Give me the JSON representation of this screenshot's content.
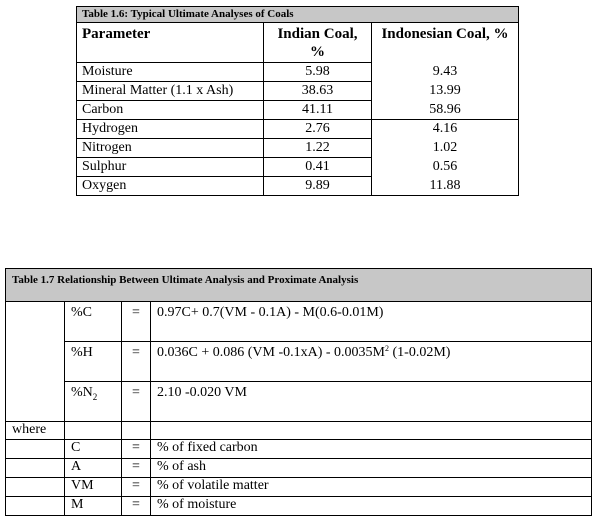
{
  "table16": {
    "caption": "Table 1.6: Typical Ultimate Analyses of  Coals",
    "headers": [
      "Parameter",
      "Indian Coal, %",
      "Indonesian Coal, %"
    ],
    "rows": [
      {
        "parameter": "Moisture",
        "indian": "5.98",
        "indonesian": "9.43"
      },
      {
        "parameter": "Mineral Matter (1.1 x Ash)",
        "indian": "38.63",
        "indonesian": "13.99"
      },
      {
        "parameter": "Carbon",
        "indian": "41.11",
        "indonesian": "58.96"
      },
      {
        "parameter": "Hydrogen",
        "indian": "2.76",
        "indonesian": "4.16"
      },
      {
        "parameter": "Nitrogen",
        "indian": "1.22",
        "indonesian": "1.02"
      },
      {
        "parameter": "Sulphur",
        "indian": "0.41",
        "indonesian": "0.56"
      },
      {
        "parameter": "Oxygen",
        "indian": "9.89",
        "indonesian": "11.88"
      }
    ]
  },
  "table17": {
    "caption": "Table  1.7    Relationship Between Ultimate Analysis and Proximate Analysis",
    "formulas": [
      {
        "symbol": "%C",
        "eq": "=",
        "expr": "0.97C+ 0.7(VM - 0.1A) - M(0.6-0.01M)"
      },
      {
        "symbol": "%H",
        "eq": "=",
        "expr_main": "0.036C + 0.086 (VM -0.1xA) - 0.0035M",
        "expr_sup": "2",
        "expr_tail": " (1-0.02M)"
      },
      {
        "symbol_main": "%N",
        "symbol_sub": "2",
        "eq": "=",
        "expr": "2.10 -0.020 VM"
      }
    ],
    "where_label": "where",
    "definitions": [
      {
        "symbol": "C",
        "eq": "=",
        "text": "% of fixed carbon"
      },
      {
        "symbol": "A",
        "eq": "=",
        "text": "% of ash"
      },
      {
        "symbol": "VM",
        "eq": "=",
        "text": "% of volatile matter"
      },
      {
        "symbol": "M",
        "eq": "=",
        "text": "% of moisture"
      }
    ]
  }
}
